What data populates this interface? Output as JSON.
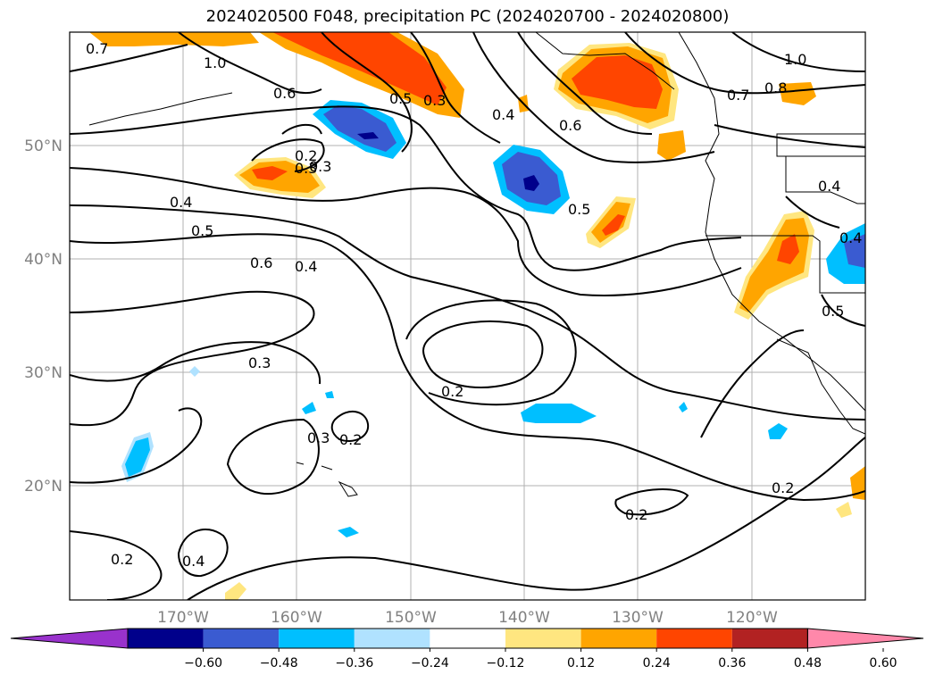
{
  "title": "2024020500 F048, precipitation PC (2024020700 - 2024020800)",
  "axes": {
    "lat_ticks": [
      "50°N",
      "40°N",
      "30°N",
      "20°N"
    ],
    "lon_ticks": [
      "170°W",
      "160°W",
      "150°W",
      "140°W",
      "130°W",
      "120°W"
    ]
  },
  "contour_labels": [
    "0.7",
    "1.0",
    "0.6",
    "0.3",
    "0.5",
    "0.3",
    "0.4",
    "0.6",
    "0.7",
    "0.8",
    "1.0",
    "0.2",
    "0.3",
    "0.4",
    "0.5",
    "0.6",
    "0.4",
    "0.5",
    "0.4",
    "0.4",
    "0.5",
    "0.3",
    "0.2",
    "0.3",
    "0.2",
    "0.2",
    "0.2",
    "0.4",
    "0.2"
  ],
  "colorbar": {
    "tick_labels": [
      "−0.60",
      "−0.48",
      "−0.36",
      "−0.24",
      "−0.12",
      "0.12",
      "0.24",
      "0.36",
      "0.48",
      "0.60"
    ],
    "colors": [
      "#9932cc",
      "#00008b",
      "#3a5bd1",
      "#00bfff",
      "#b0e2ff",
      "#ffffff",
      "#ffe680",
      "#ffa500",
      "#ff4500",
      "#b22222",
      "#ff88aa"
    ]
  }
}
